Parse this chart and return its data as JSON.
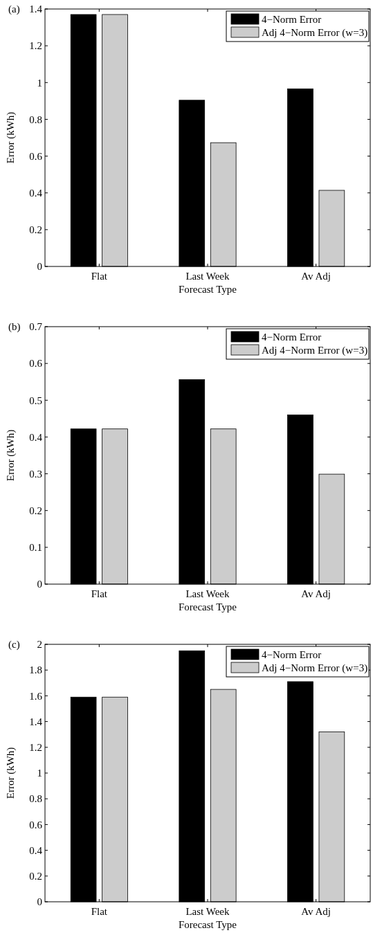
{
  "chart_data": [
    {
      "type": "bar",
      "title": "(a)",
      "xlabel": "Forecast Type",
      "ylabel": "Error (kWh)",
      "categories": [
        "Flat",
        "Last Week",
        "Av Adj"
      ],
      "series": [
        {
          "name": "4−Norm Error",
          "color": "#000000",
          "values": [
            1.37,
            0.904,
            0.966
          ]
        },
        {
          "name": "Adj 4−Norm Error (w=3)",
          "color": "#cccccc",
          "values": [
            1.37,
            0.673,
            0.414
          ]
        }
      ],
      "ylim": [
        0,
        1.4
      ],
      "yticks": [
        0,
        0.2,
        0.4,
        0.6,
        0.8,
        1,
        1.2,
        1.4
      ],
      "legend": "top right",
      "grid": false
    },
    {
      "type": "bar",
      "title": "(b)",
      "xlabel": "Forecast Type",
      "ylabel": "Error (kWh)",
      "categories": [
        "Flat",
        "Last Week",
        "Av Adj"
      ],
      "series": [
        {
          "name": "4−Norm Error",
          "color": "#000000",
          "values": [
            0.422,
            0.556,
            0.46
          ]
        },
        {
          "name": "Adj 4−Norm Error (w=3)",
          "color": "#cccccc",
          "values": [
            0.422,
            0.422,
            0.299
          ]
        }
      ],
      "ylim": [
        0,
        0.7
      ],
      "yticks": [
        0,
        0.1,
        0.2,
        0.3,
        0.4,
        0.5,
        0.6,
        0.7
      ],
      "legend": "top right",
      "grid": false
    },
    {
      "type": "bar",
      "title": "(c)",
      "xlabel": "Forecast Type",
      "ylabel": "Error (kWh)",
      "categories": [
        "Flat",
        "Last Week",
        "Av Adj"
      ],
      "series": [
        {
          "name": "4−Norm Error",
          "color": "#000000",
          "values": [
            1.59,
            1.95,
            1.71
          ]
        },
        {
          "name": "Adj 4−Norm Error (w=3)",
          "color": "#cccccc",
          "values": [
            1.59,
            1.65,
            1.32
          ]
        }
      ],
      "ylim": [
        0,
        2
      ],
      "yticks": [
        0,
        0.2,
        0.4,
        0.6,
        0.8,
        1,
        1.2,
        1.4,
        1.6,
        1.8,
        2
      ],
      "legend": "top right",
      "grid": false
    }
  ]
}
